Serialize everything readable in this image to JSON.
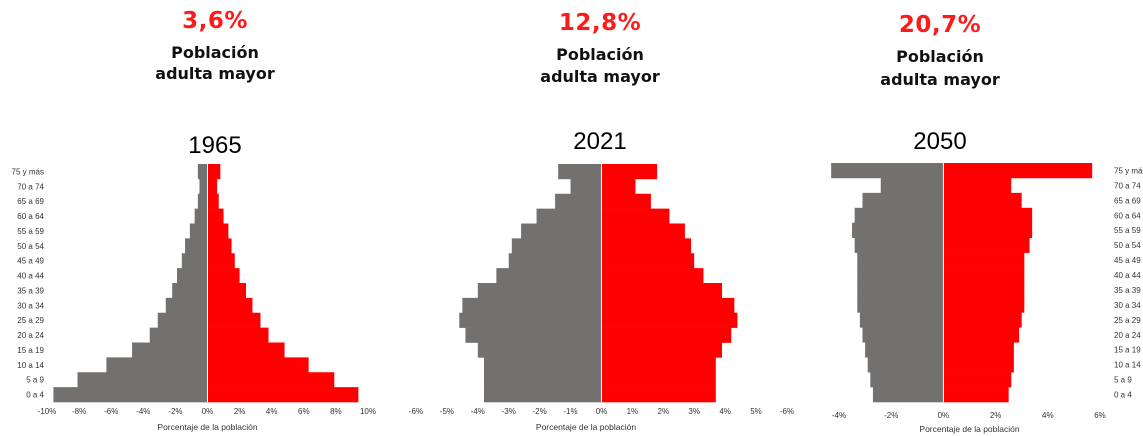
{
  "colors": {
    "male": "#737070",
    "female": "#ff0000",
    "accent": "#ff1a1a"
  },
  "panels": [
    {
      "percent": "3,6%",
      "headline1": "Población",
      "headline2": "adulta mayor",
      "year": "1965"
    },
    {
      "percent": "12,8%",
      "headline1": "Población",
      "headline2": "adulta mayor",
      "year": "2021"
    },
    {
      "percent": "20,7%",
      "headline1": "Población",
      "headline2": "adulta mayor",
      "year": "2050"
    }
  ],
  "chart_data": [
    {
      "type": "bar",
      "orientation": "horizontal",
      "title": "1965",
      "xlabel": "Porcentaje de la población",
      "categories": [
        "0 a 4",
        "5 a 9",
        "10 a 14",
        "15 a 19",
        "20 a 24",
        "25 a 29",
        "30 a 34",
        "35 a 39",
        "40 a 44",
        "45 a 49",
        "50 a 54",
        "55 a 59",
        "60 a 64",
        "65 a 69",
        "70 a 74",
        "75 y más"
      ],
      "series": [
        {
          "values": [
            -9.6,
            -8.1,
            -6.3,
            -4.7,
            -3.6,
            -3.1,
            -2.6,
            -2.2,
            -1.9,
            -1.6,
            -1.4,
            -1.1,
            -0.8,
            -0.6,
            -0.5,
            -0.6
          ]
        },
        {
          "values": [
            9.4,
            7.9,
            6.3,
            4.8,
            3.8,
            3.3,
            2.8,
            2.4,
            2.0,
            1.7,
            1.5,
            1.3,
            1.0,
            0.7,
            0.6,
            0.8
          ]
        }
      ],
      "xlim": [
        -10,
        10
      ],
      "xticks": [
        -10,
        -8,
        -6,
        -4,
        -2,
        0,
        2,
        4,
        6,
        8,
        10
      ],
      "xticklabels": [
        "-10%",
        "-8%",
        "-6%",
        "-4%",
        "-2%",
        "0%",
        "2%",
        "4%",
        "6%",
        "8%",
        "10%"
      ],
      "ylabel_side": "left"
    },
    {
      "type": "bar",
      "orientation": "horizontal",
      "title": "2021",
      "xlabel": "Porcentaje de la población",
      "categories": [
        "0 a 4",
        "5 a 9",
        "10 a 14",
        "15 a 19",
        "20 a 24",
        "25 a 29",
        "30 a 34",
        "35 a 39",
        "40 a 44",
        "45 a 49",
        "50 a 54",
        "55 a 59",
        "60 a 64",
        "65 a 69",
        "70 a 74",
        "75 y más"
      ],
      "series": [
        {
          "values": [
            -3.8,
            -3.8,
            -3.8,
            -4.0,
            -4.4,
            -4.6,
            -4.5,
            -4.0,
            -3.4,
            -3.0,
            -2.9,
            -2.6,
            -2.1,
            -1.5,
            -1.0,
            -1.4
          ]
        },
        {
          "values": [
            3.7,
            3.7,
            3.7,
            3.9,
            4.2,
            4.4,
            4.3,
            3.9,
            3.3,
            3.0,
            2.9,
            2.7,
            2.2,
            1.6,
            1.1,
            1.8
          ]
        }
      ],
      "xlim": [
        -6,
        5
      ],
      "xticks": [
        -6,
        -5,
        -4,
        -3,
        -2,
        -1,
        0,
        1,
        2,
        3,
        4,
        5
      ],
      "xticklabels": [
        "-6%",
        "-5%",
        "-4%",
        "-3%",
        "-2%",
        "-1%",
        "0%",
        "1%",
        "2%",
        "3%",
        "4%",
        "5%"
      ],
      "extra_tick": "-6%",
      "ylabel_side": "none"
    },
    {
      "type": "bar",
      "orientation": "horizontal",
      "title": "2050",
      "xlabel": "Porcentaje de la población",
      "categories": [
        "0 a 4",
        "5 a 9",
        "10 a 14",
        "15 a 19",
        "20 a 24",
        "25 a 29",
        "30 a 34",
        "35 a 39",
        "40 a 44",
        "45 a 49",
        "50 a 54",
        "55 a 59",
        "60 a 64",
        "65 a 69",
        "70 a 74",
        "75 y más"
      ],
      "series": [
        {
          "values": [
            -2.7,
            -2.8,
            -2.9,
            -3.0,
            -3.1,
            -3.2,
            -3.3,
            -3.3,
            -3.3,
            -3.3,
            -3.4,
            -3.5,
            -3.4,
            -3.1,
            -2.4,
            -4.3
          ]
        },
        {
          "values": [
            2.5,
            2.6,
            2.7,
            2.7,
            2.9,
            3.0,
            3.1,
            3.1,
            3.1,
            3.1,
            3.3,
            3.4,
            3.4,
            3.0,
            2.6,
            5.7
          ]
        }
      ],
      "xlim": [
        -4,
        6
      ],
      "xticks": [
        -4,
        -2,
        0,
        2,
        4,
        6
      ],
      "xticklabels": [
        "-4%",
        "-2%",
        "0%",
        "2%",
        "4%",
        "6%"
      ],
      "ylabel_side": "right"
    }
  ]
}
